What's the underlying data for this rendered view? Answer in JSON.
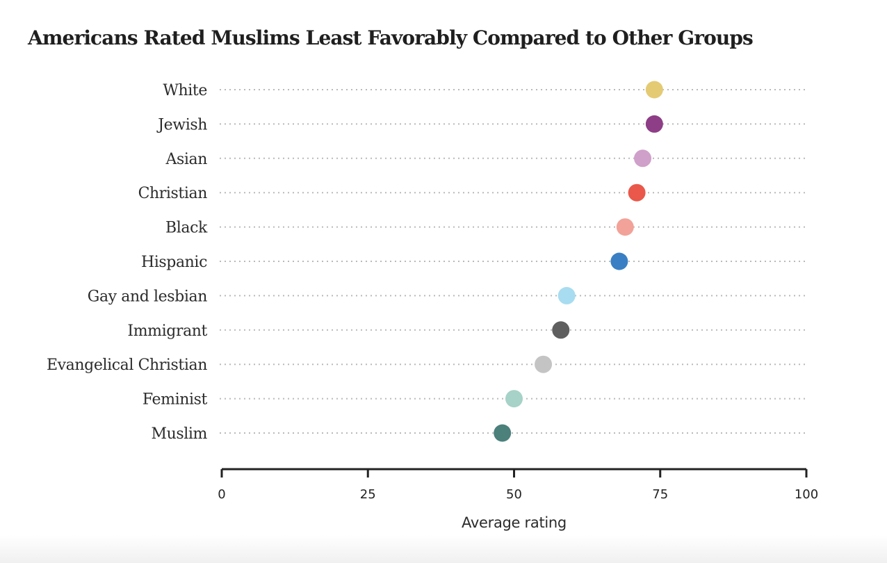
{
  "chart_data": {
    "type": "dot",
    "title": "Americans Rated Muslims Least Favorably Compared to Other Groups",
    "xlabel": "Average rating",
    "ylabel": "",
    "xlim": [
      0,
      100
    ],
    "xticks": [
      0,
      25,
      50,
      75,
      100
    ],
    "categories": [
      "White",
      "Jewish",
      "Asian",
      "Christian",
      "Black",
      "Hispanic",
      "Gay and lesbian",
      "Immigrant",
      "Evangelical Christian",
      "Feminist",
      "Muslim"
    ],
    "values": [
      74,
      74,
      72,
      71,
      69,
      68,
      59,
      58,
      55,
      50,
      48
    ],
    "colors": [
      "#e4ca73",
      "#8e3e86",
      "#cfa0c9",
      "#e9584a",
      "#f2a298",
      "#3a7fc3",
      "#a8dcf0",
      "#5f5f5f",
      "#c4c4c4",
      "#a6d2c8",
      "#4b807b"
    ],
    "grid": "dotted guide per category"
  }
}
